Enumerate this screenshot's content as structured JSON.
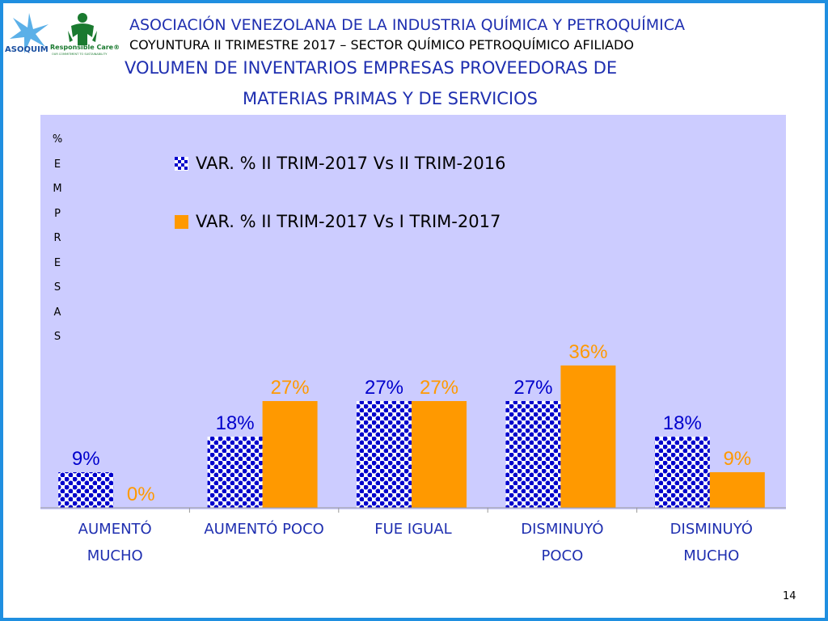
{
  "header": {
    "org_title": "ASOCIACIÓN VENEZOLANA DE LA INDUSTRIA QUÍMICA Y PETROQUÍMICA",
    "subtitle": "COYUNTURA II TRIMESTRE 2017 – SECTOR QUÍMICO PETROQUÍMICO AFILIADO",
    "logo_asoquim": "ASOQUIM",
    "logo_rc": "Responsible Care®",
    "logo_rc_tagline": "OUR COMMITMENT TO SUSTAINABILITY"
  },
  "colors": {
    "title_blue": "#1f2fb0",
    "series1": "#0000cc",
    "series2": "#ff9900",
    "plot_bg": "#ccccff",
    "frame": "#1f8fe0"
  },
  "page_number": "14",
  "chart_data": {
    "type": "bar",
    "title_line1": "VOLUMEN DE INVENTARIOS EMPRESAS PROVEEDORAS  DE",
    "title_line2": "MATERIAS PRIMAS Y DE SERVICIOS",
    "ylabel": [
      "%",
      "",
      "E",
      "M",
      "P",
      "R",
      "E",
      "S",
      "A",
      "S"
    ],
    "categories": [
      [
        "AUMENTÓ",
        "MUCHO"
      ],
      [
        "AUMENTÓ POCO"
      ],
      [
        "FUE IGUAL"
      ],
      [
        "DISMINUYÓ",
        "POCO"
      ],
      [
        "DISMINUYÓ",
        "MUCHO"
      ]
    ],
    "series": [
      {
        "name": "VAR. % II TRIM-2017 Vs II TRIM-2016",
        "values": [
          9,
          18,
          27,
          27,
          18
        ],
        "labels": [
          "9%",
          "18%",
          "27%",
          "27%",
          "18%"
        ],
        "color": "#0000cc",
        "pattern": "checker"
      },
      {
        "name": "VAR. % II TRIM-2017 Vs I TRIM-2017",
        "values": [
          0,
          27,
          27,
          36,
          9
        ],
        "labels": [
          "0%",
          "27%",
          "27%",
          "36%",
          "9%"
        ],
        "color": "#ff9900",
        "pattern": "solid"
      }
    ],
    "ylim": [
      0,
      36
    ],
    "grid": false,
    "legend_position": "top-left"
  }
}
